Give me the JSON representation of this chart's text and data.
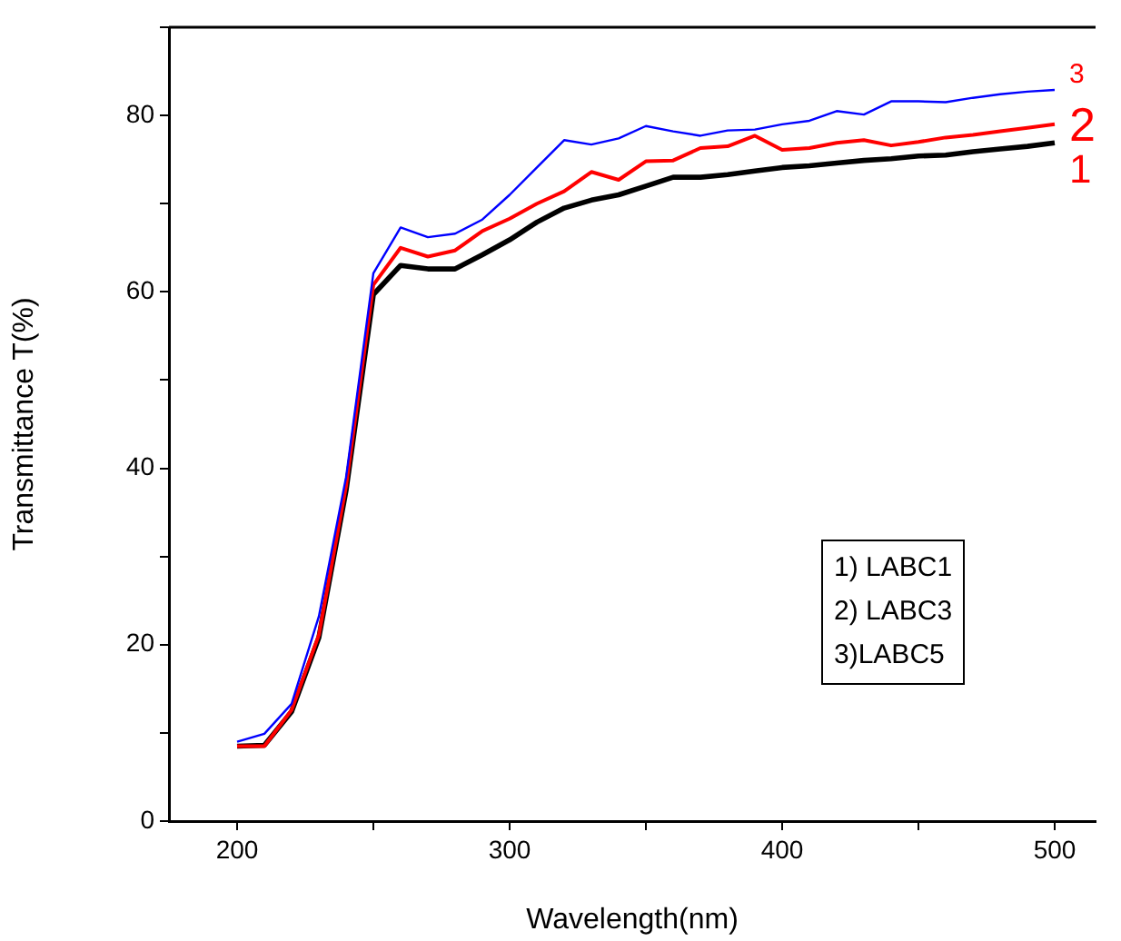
{
  "chart_data": {
    "type": "line",
    "xlabel": "Wavelength(nm)",
    "ylabel": "Transmittance T(%)",
    "x": [
      200,
      210,
      220,
      230,
      240,
      250,
      260,
      270,
      280,
      290,
      300,
      310,
      320,
      330,
      340,
      350,
      360,
      370,
      380,
      390,
      400,
      410,
      420,
      430,
      440,
      450,
      460,
      470,
      480,
      490,
      500
    ],
    "series": [
      {
        "name": "1",
        "color": "#000000",
        "values": [
          8.5,
          8.6,
          12.4,
          20.8,
          37.5,
          59.7,
          63.0,
          62.6,
          62.6,
          64.2,
          65.9,
          67.9,
          69.5,
          70.4,
          71.0,
          72.0,
          73.0,
          73.0,
          73.3,
          73.7,
          74.1,
          74.3,
          74.6,
          74.9,
          75.1,
          75.4,
          75.5,
          75.9,
          76.2,
          76.5,
          76.9
        ]
      },
      {
        "name": "2",
        "color": "#ff0000",
        "values": [
          8.5,
          8.5,
          12.6,
          21.1,
          38.0,
          60.8,
          65.0,
          64.0,
          64.7,
          66.9,
          68.3,
          70.0,
          71.4,
          73.6,
          72.7,
          74.8,
          74.9,
          76.3,
          76.5,
          77.7,
          76.1,
          76.3,
          76.9,
          77.2,
          76.6,
          77.0,
          77.5,
          77.8,
          78.2,
          78.6,
          79.0
        ]
      },
      {
        "name": "3",
        "color": "#0000ff",
        "values": [
          9.0,
          9.9,
          13.3,
          23.2,
          39.0,
          62.1,
          67.3,
          66.2,
          66.6,
          68.2,
          71.0,
          74.1,
          77.2,
          76.7,
          77.4,
          78.8,
          78.2,
          77.7,
          78.3,
          78.4,
          79.0,
          79.4,
          80.5,
          80.1,
          81.6,
          81.6,
          81.5,
          82.0,
          82.4,
          82.7,
          82.9
        ]
      }
    ],
    "xlim": [
      175,
      515
    ],
    "xticks": [
      200,
      {
        "value": 250,
        "label": null
      },
      300,
      {
        "value": 350,
        "label": null
      },
      400,
      {
        "value": 450,
        "label": null
      },
      500
    ],
    "ylim": [
      0,
      90
    ],
    "yticks": [
      0,
      {
        "value": 10,
        "label": null
      },
      20,
      {
        "value": 30,
        "label": null
      },
      40,
      {
        "value": 50,
        "label": null
      },
      60,
      {
        "value": 70,
        "label": null
      },
      80,
      {
        "value": 90,
        "label": null
      }
    ],
    "annotations": [
      "1) LABC1",
      "2) LABC3",
      "3)LABC5"
    ],
    "grid": false,
    "legend": false,
    "marker": "none",
    "line_style": "solid"
  }
}
